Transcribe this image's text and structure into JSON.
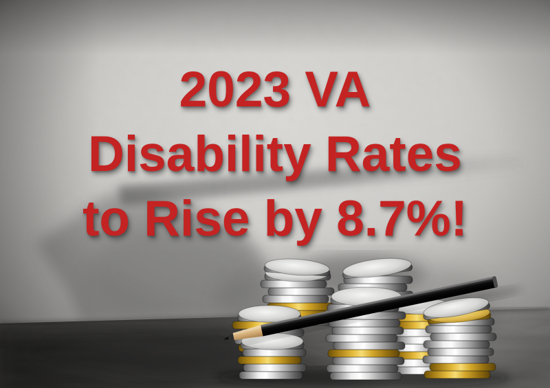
{
  "headline": {
    "line1": "2023 VA",
    "line2": "Disability Rates",
    "line3": "to Rise by 8.7%!"
  },
  "colors": {
    "headline_red": "#c32322",
    "wall_light": "#dcdbd8",
    "wall_dark": "#929190",
    "table_wood_dark": "#343331",
    "coin_silver": "#d9d9d9",
    "coin_gold": "#e0b53a",
    "pencil_body": "#101010",
    "pencil_wood": "#d4ae79"
  }
}
